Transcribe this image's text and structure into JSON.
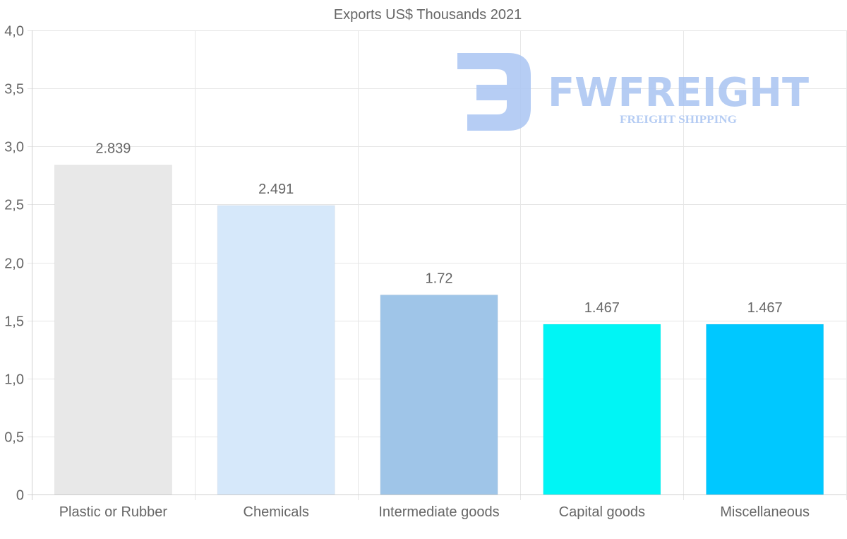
{
  "chart_data": {
    "type": "bar",
    "title": "Exports US$ Thousands 2021",
    "categories": [
      "Plastic or Rubber",
      "Chemicals",
      "Intermediate goods",
      "Capital goods",
      "Miscellaneous"
    ],
    "values": [
      2.839,
      2.491,
      1.72,
      1.467,
      1.467
    ],
    "value_labels": [
      "2.839",
      "2.491",
      "1.72",
      "1.467",
      "1.467"
    ],
    "colors": [
      "#e8e8e8",
      "#d6e8fa",
      "#9fc5e8",
      "#00f5f5",
      "#00c8ff"
    ],
    "ylim": [
      0,
      4
    ],
    "yticks": [
      0,
      0.5,
      1,
      1.5,
      2,
      2.5,
      3,
      3.5,
      4
    ],
    "ytick_labels": [
      "0",
      "0,5",
      "1,0",
      "1,5",
      "2,0",
      "2,5",
      "3,0",
      "3,5",
      "4,0"
    ],
    "xlabel": "",
    "ylabel": "",
    "grid": true
  },
  "watermark": {
    "logo_text": "FWFREIGHT",
    "tagline": "FREIGHT SHIPPING",
    "color": "#a9c4f2"
  }
}
